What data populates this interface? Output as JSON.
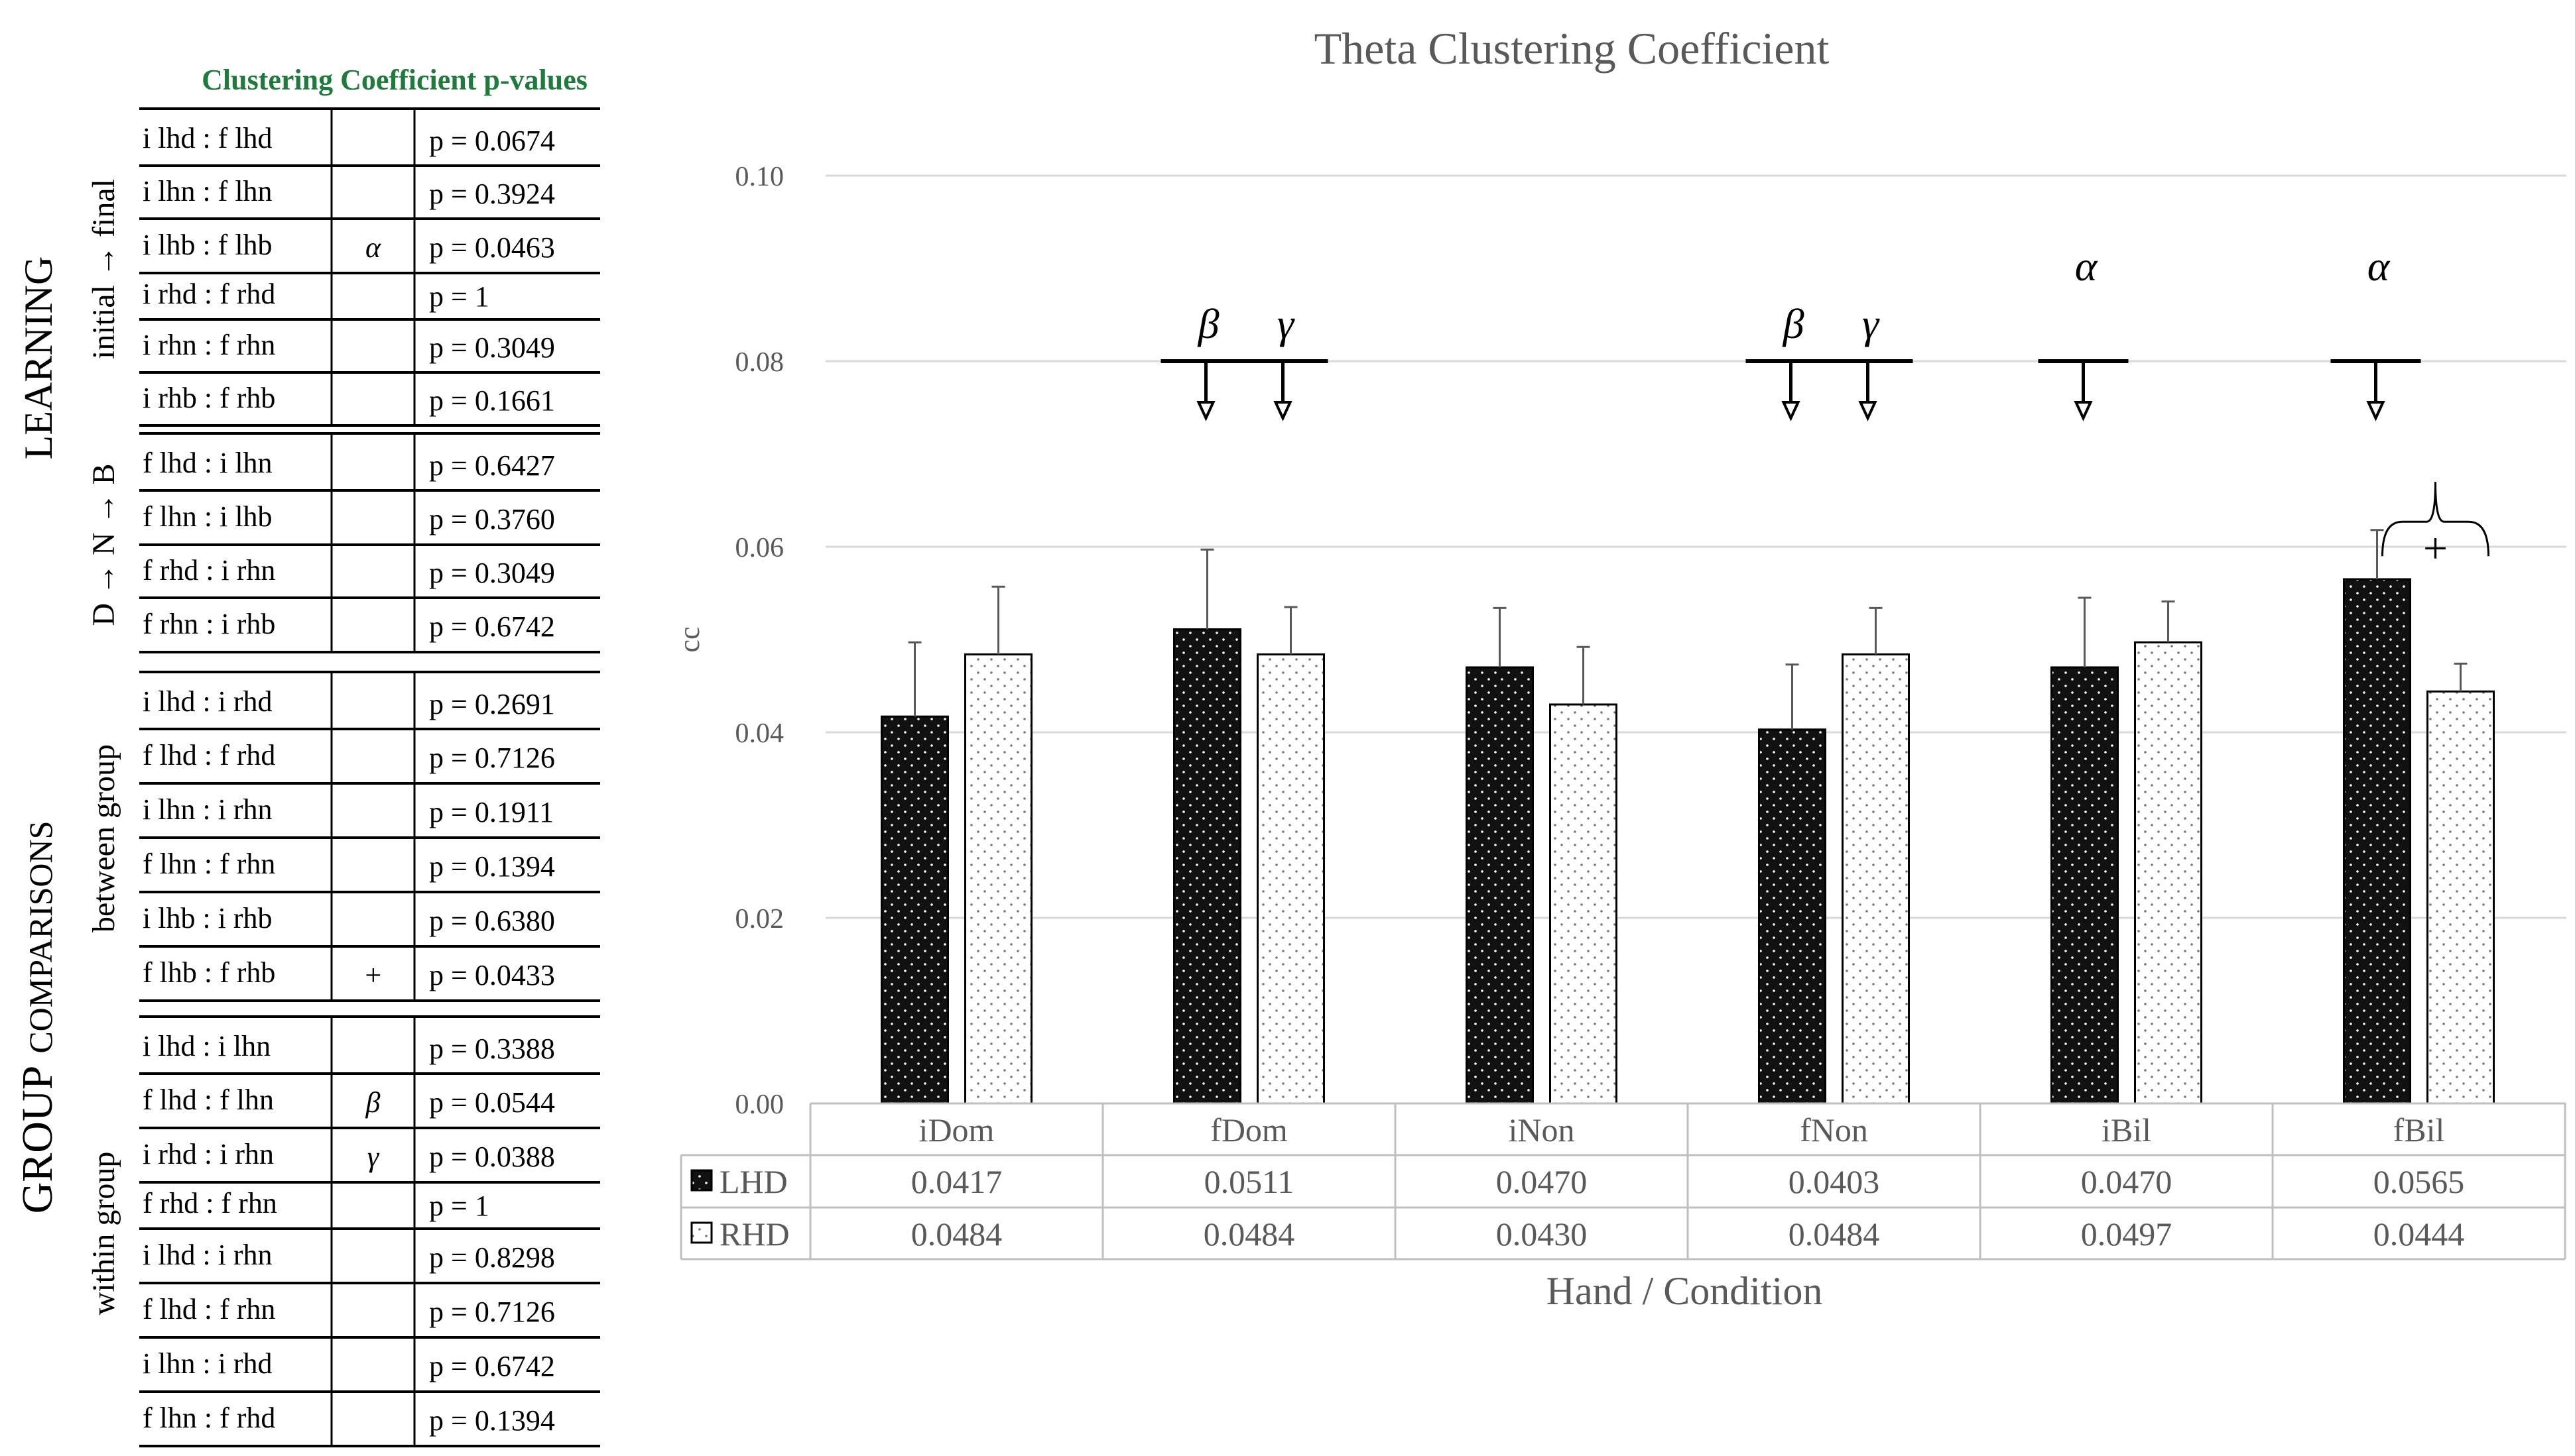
{
  "table": {
    "title": "Clustering Coefficient p-values",
    "title_color": "#1e7b3c",
    "section_labels": {
      "learning": "LEARNING",
      "group_comparisons_prefix": "GROUP",
      "group_comparisons_suffix": "COMPARISONS"
    },
    "groups": [
      {
        "label": "initial → final",
        "rows": [
          {
            "comparison": "i lhd : f lhd",
            "mark": "",
            "p": "p = 0.0674"
          },
          {
            "comparison": "i lhn : f lhn",
            "mark": "",
            "p": "p = 0.3924"
          },
          {
            "comparison": "i lhb : f lhb",
            "mark": "α",
            "p": "p = 0.0463"
          },
          {
            "comparison": "i rhd : f rhd",
            "mark": "",
            "p": "p = 1"
          },
          {
            "comparison": "i rhn : f rhn",
            "mark": "",
            "p": "p = 0.3049"
          },
          {
            "comparison": "i rhb : f rhb",
            "mark": "",
            "p": "p = 0.1661"
          }
        ]
      },
      {
        "label": "D → N → B",
        "rows": [
          {
            "comparison": "f lhd : i lhn",
            "mark": "",
            "p": "p = 0.6427"
          },
          {
            "comparison": "f lhn : i lhb",
            "mark": "",
            "p": "p = 0.3760"
          },
          {
            "comparison": "f rhd : i rhn",
            "mark": "",
            "p": "p = 0.3049"
          },
          {
            "comparison": "f rhn : i rhb",
            "mark": "",
            "p": "p = 0.6742"
          }
        ]
      },
      {
        "label": "between group",
        "rows": [
          {
            "comparison": "i lhd : i rhd",
            "mark": "",
            "p": "p = 0.2691"
          },
          {
            "comparison": "f lhd : f rhd",
            "mark": "",
            "p": "p = 0.7126"
          },
          {
            "comparison": "i lhn : i rhn",
            "mark": "",
            "p": "p = 0.1911"
          },
          {
            "comparison": "f lhn : f rhn",
            "mark": "",
            "p": "p = 0.1394"
          },
          {
            "comparison": "i lhb : i rhb",
            "mark": "",
            "p": "p = 0.6380"
          },
          {
            "comparison": "f lhb : f rhb",
            "mark": "+",
            "p": "p = 0.0433"
          }
        ]
      },
      {
        "label": "within group",
        "rows": [
          {
            "comparison": "i lhd : i lhn",
            "mark": "",
            "p": "p = 0.3388"
          },
          {
            "comparison": "f lhd : f lhn",
            "mark": "β",
            "p": "p = 0.0544"
          },
          {
            "comparison": "i rhd : i rhn",
            "mark": "γ",
            "p": "p = 0.0388"
          },
          {
            "comparison": "f rhd : f rhn",
            "mark": "",
            "p": "p = 1"
          },
          {
            "comparison": "i lhd : i rhn",
            "mark": "",
            "p": "p = 0.8298"
          },
          {
            "comparison": "f lhd : f rhn",
            "mark": "",
            "p": "p = 0.7126"
          },
          {
            "comparison": "i lhn : i rhd",
            "mark": "",
            "p": "p = 0.6742"
          },
          {
            "comparison": "f lhn : f rhd",
            "mark": "",
            "p": "p = 0.1394"
          }
        ]
      }
    ]
  },
  "chart_data": {
    "type": "bar",
    "title": "Theta Clustering Coefficient",
    "xlabel": "Hand / Condition",
    "ylabel": "cc",
    "ylim": [
      0,
      0.1
    ],
    "yticks": [
      "0.00",
      "0.02",
      "0.04",
      "0.06",
      "0.08",
      "0.10"
    ],
    "ytick_values": [
      0,
      0.02,
      0.04,
      0.06,
      0.08,
      0.1
    ],
    "grid": true,
    "categories": [
      "iDom",
      "fDom",
      "iNon",
      "fNon",
      "iBil",
      "fBil"
    ],
    "series": [
      {
        "name": "LHD",
        "values": [
          0.0417,
          0.0511,
          0.047,
          0.0403,
          0.047,
          0.0565
        ],
        "labels": [
          "0.0417",
          "0.0511",
          "0.0470",
          "0.0403",
          "0.0470",
          "0.0565"
        ],
        "error_upper": [
          0.0497,
          0.0597,
          0.0534,
          0.0473,
          0.0545,
          0.0618
        ],
        "color": "#111111"
      },
      {
        "name": "RHD",
        "values": [
          0.0484,
          0.0484,
          0.043,
          0.0484,
          0.0497,
          0.0444
        ],
        "labels": [
          "0.0484",
          "0.0484",
          "0.0430",
          "0.0484",
          "0.0497",
          "0.0444"
        ],
        "error_upper": [
          0.0557,
          0.0535,
          0.0492,
          0.0534,
          0.0541,
          0.0474
        ],
        "color": "#ffffff"
      }
    ],
    "annotations": [
      {
        "symbol": "β",
        "category": 1,
        "series": 0
      },
      {
        "symbol": "γ",
        "category": 1,
        "series": 1
      },
      {
        "symbol": "β",
        "category": 3,
        "series": 0
      },
      {
        "symbol": "γ",
        "category": 3,
        "series": 1
      },
      {
        "symbol": "α",
        "category": 4,
        "series": 0
      },
      {
        "symbol": "α",
        "category": 5,
        "series": 0
      }
    ],
    "bracket": {
      "symbol": "+",
      "category": 5
    }
  }
}
